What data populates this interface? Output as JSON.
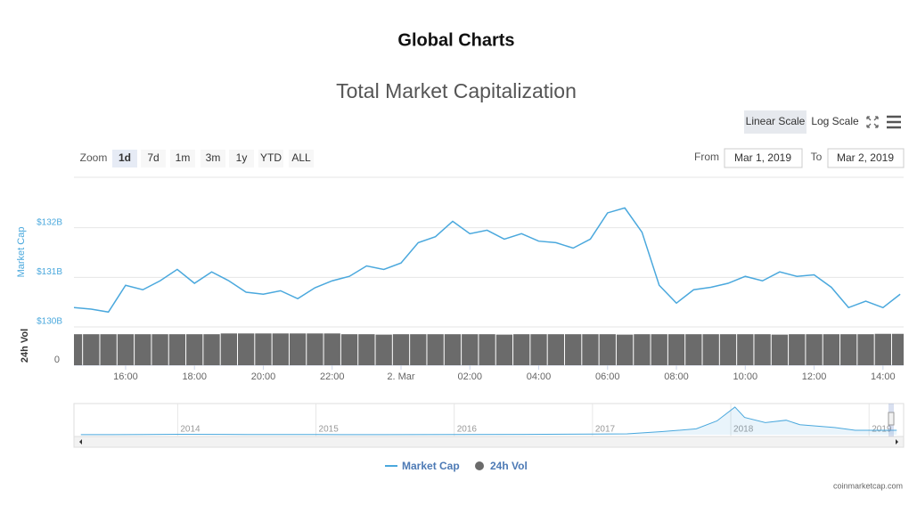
{
  "page": {
    "title": "Global Charts",
    "credit": "coinmarketcap.com"
  },
  "chart_data": {
    "type": "line",
    "title": "Total Market Capitalization",
    "scale_buttons": [
      "Linear Scale",
      "Log Scale"
    ],
    "active_scale": 0,
    "zoom_label": "Zoom",
    "zoom_buttons": [
      "1d",
      "7d",
      "1m",
      "3m",
      "1y",
      "YTD",
      "ALL"
    ],
    "active_zoom": 0,
    "from_label": "From",
    "from": "Mar 1, 2019",
    "to_label": "To",
    "to": "Mar 2, 2019",
    "y_label": "Market Cap",
    "y2_label": "24h Vol",
    "x": [
      14.5,
      15,
      15.5,
      16,
      16.5,
      17,
      17.5,
      18,
      18.5,
      19,
      19.5,
      20,
      20.5,
      21,
      21.5,
      22,
      22.5,
      23,
      23.5,
      24,
      24.5,
      25,
      25.5,
      26,
      26.5,
      27,
      27.5,
      28,
      28.5,
      29,
      29.5,
      30,
      30.5,
      31,
      31.5,
      32,
      32.5,
      33,
      33.5,
      34,
      34.5,
      35,
      35.5,
      36,
      36.5,
      37,
      37.5,
      38,
      38.5
    ],
    "xlim": [
      14.5,
      38.6
    ],
    "xticks": [
      {
        "value": 16,
        "label": "16:00"
      },
      {
        "value": 18,
        "label": "18:00"
      },
      {
        "value": 20,
        "label": "20:00"
      },
      {
        "value": 22,
        "label": "22:00"
      },
      {
        "value": 24,
        "label": "2. Mar"
      },
      {
        "value": 26,
        "label": "02:00"
      },
      {
        "value": 28,
        "label": "04:00"
      },
      {
        "value": 30,
        "label": "06:00"
      },
      {
        "value": 32,
        "label": "08:00"
      },
      {
        "value": 34,
        "label": "10:00"
      },
      {
        "value": 36,
        "label": "12:00"
      },
      {
        "value": 38,
        "label": "14:00"
      }
    ],
    "ylim": [
      130,
      133
    ],
    "yticks": [
      {
        "value": 130,
        "label": "$130B"
      },
      {
        "value": 131,
        "label": "$131B"
      },
      {
        "value": 132,
        "label": "$132B"
      }
    ],
    "y2lim": [
      0,
      10
    ],
    "y2ticks": [
      0
    ],
    "grid": true,
    "series": [
      {
        "name": "Market Cap",
        "color": "#4aa8dd",
        "values": [
          130.39,
          130.36,
          130.3,
          130.84,
          130.75,
          130.93,
          131.16,
          130.88,
          131.11,
          130.93,
          130.7,
          130.66,
          130.73,
          130.57,
          130.79,
          130.93,
          131.02,
          131.23,
          131.16,
          131.29,
          131.7,
          131.82,
          132.13,
          131.88,
          131.95,
          131.77,
          131.88,
          131.73,
          131.7,
          131.59,
          131.77,
          132.3,
          132.4,
          131.91,
          130.84,
          130.48,
          130.75,
          130.8,
          130.88,
          131.02,
          130.93,
          131.11,
          131.02,
          131.05,
          130.8,
          130.39,
          130.52,
          130.39,
          130.66
        ]
      },
      {
        "name": "24h Vol",
        "type": "bar",
        "axis": "y2",
        "color": "#6b6b6b",
        "values": [
          8.1,
          8.1,
          8.1,
          8.1,
          8.1,
          8.1,
          8.1,
          8.1,
          8.1,
          8.3,
          8.3,
          8.3,
          8.3,
          8.3,
          8.3,
          8.3,
          8.1,
          8.1,
          8.0,
          8.1,
          8.1,
          8.1,
          8.1,
          8.1,
          8.1,
          8.0,
          8.1,
          8.1,
          8.1,
          8.1,
          8.1,
          8.1,
          8.0,
          8.1,
          8.1,
          8.1,
          8.1,
          8.1,
          8.1,
          8.1,
          8.1,
          8.0,
          8.1,
          8.1,
          8.1,
          8.1,
          8.1,
          8.2,
          8.2
        ]
      }
    ],
    "navigator": {
      "color": "#4aa8dd",
      "x": [
        2013.3,
        2013.75,
        2014.0,
        2014.5,
        2015.0,
        2015.5,
        2016.0,
        2016.5,
        2017.0,
        2017.25,
        2017.5,
        2017.75,
        2017.9,
        2018.03,
        2018.1,
        2018.25,
        2018.4,
        2018.5,
        2018.75,
        2018.9,
        2019.2
      ],
      "values": [
        2,
        5,
        12,
        8,
        5,
        4,
        7,
        10,
        18,
        25,
        90,
        170,
        400,
        800,
        500,
        350,
        420,
        290,
        210,
        130,
        130
      ],
      "xlim": [
        2013.25,
        2019.25
      ],
      "ylim": [
        0,
        850
      ],
      "xticks": [
        2014,
        2015,
        2016,
        2017,
        2018,
        2019
      ]
    }
  }
}
